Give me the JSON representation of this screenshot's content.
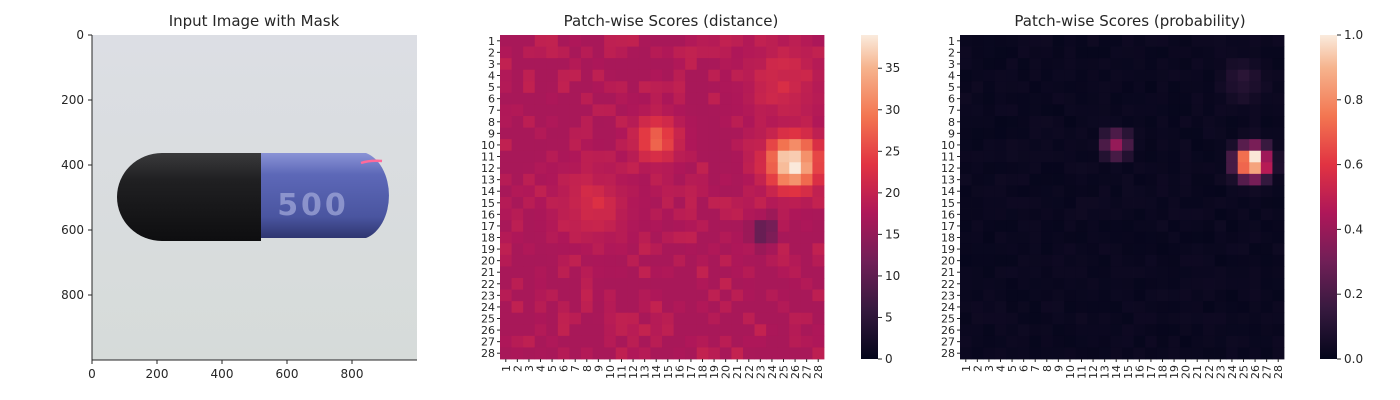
{
  "chart_data": [
    {
      "type": "image",
      "title": "Input Image with Mask",
      "xlim": [
        0,
        1000
      ],
      "ylim": [
        1000,
        0
      ],
      "xticks": [
        0,
        200,
        400,
        600,
        800
      ],
      "yticks": [
        0,
        200,
        400,
        600,
        800
      ],
      "tick_labels_x": [
        "0",
        "200",
        "400",
        "600",
        "800"
      ],
      "tick_labels_y": [
        "0",
        "200",
        "400",
        "600",
        "800"
      ],
      "image_label": "500",
      "colors": {
        "capsule_cap": "#1b1b1d",
        "capsule_body": "#4e59a8",
        "background": "#d8dbdd",
        "mask": "#ff6a9a"
      }
    },
    {
      "type": "heatmap",
      "title": "Patch-wise Scores (distance)",
      "rows": 28,
      "cols": 28,
      "row_labels": [
        "1",
        "2",
        "3",
        "4",
        "5",
        "6",
        "7",
        "8",
        "9",
        "10",
        "11",
        "12",
        "13",
        "14",
        "15",
        "16",
        "17",
        "18",
        "19",
        "20",
        "21",
        "22",
        "23",
        "24",
        "25",
        "26",
        "27",
        "28"
      ],
      "col_labels": [
        "1",
        "2",
        "3",
        "4",
        "5",
        "6",
        "7",
        "8",
        "9",
        "10",
        "11",
        "12",
        "13",
        "14",
        "15",
        "16",
        "17",
        "18",
        "19",
        "20",
        "21",
        "22",
        "23",
        "24",
        "25",
        "26",
        "27",
        "28"
      ],
      "colorbar": {
        "min": 0,
        "max": 39,
        "ticks": [
          0,
          5,
          10,
          15,
          20,
          25,
          30,
          35
        ],
        "tick_labels": [
          "0",
          "5",
          "10",
          "15",
          "20",
          "25",
          "30",
          "35"
        ]
      },
      "colormap": "rocket",
      "baseline": 17,
      "hotspots": [
        {
          "row": 11.5,
          "col": 25.8,
          "peak": 39,
          "spread": 1.6
        },
        {
          "row": 9.5,
          "col": 14,
          "peak": 28,
          "spread": 1.3
        },
        {
          "row": 15,
          "col": 8.5,
          "peak": 22,
          "spread": 2.0
        },
        {
          "row": 4.5,
          "col": 25,
          "peak": 22,
          "spread": 2.2
        }
      ],
      "coldspots": [
        {
          "row": 17.5,
          "col": 23.5,
          "depth": 9,
          "spread": 0.8
        }
      ]
    },
    {
      "type": "heatmap",
      "title": "Patch-wise Scores (probability)",
      "rows": 28,
      "cols": 28,
      "row_labels": [
        "1",
        "2",
        "3",
        "4",
        "5",
        "6",
        "7",
        "8",
        "9",
        "10",
        "11",
        "12",
        "13",
        "14",
        "15",
        "16",
        "17",
        "18",
        "19",
        "20",
        "21",
        "22",
        "23",
        "24",
        "25",
        "26",
        "27",
        "28"
      ],
      "col_labels": [
        "1",
        "2",
        "3",
        "4",
        "5",
        "6",
        "7",
        "8",
        "9",
        "10",
        "11",
        "12",
        "13",
        "14",
        "15",
        "16",
        "17",
        "18",
        "19",
        "20",
        "21",
        "22",
        "23",
        "24",
        "25",
        "26",
        "27",
        "28"
      ],
      "colorbar": {
        "min": 0,
        "max": 1,
        "ticks": [
          0,
          0.2,
          0.4,
          0.6,
          0.8,
          1.0
        ],
        "tick_labels": [
          "0.0",
          "0.2",
          "0.4",
          "0.6",
          "0.8",
          "1.0"
        ]
      },
      "colormap": "rocket",
      "baseline": 0.01,
      "hotspots": [
        {
          "row": 11.5,
          "col": 25.8,
          "peak": 1.0,
          "spread": 1.0
        },
        {
          "row": 10,
          "col": 14,
          "peak": 0.35,
          "spread": 0.9
        },
        {
          "row": 4.5,
          "col": 25,
          "peak": 0.12,
          "spread": 1.4
        }
      ],
      "coldspots": []
    }
  ]
}
